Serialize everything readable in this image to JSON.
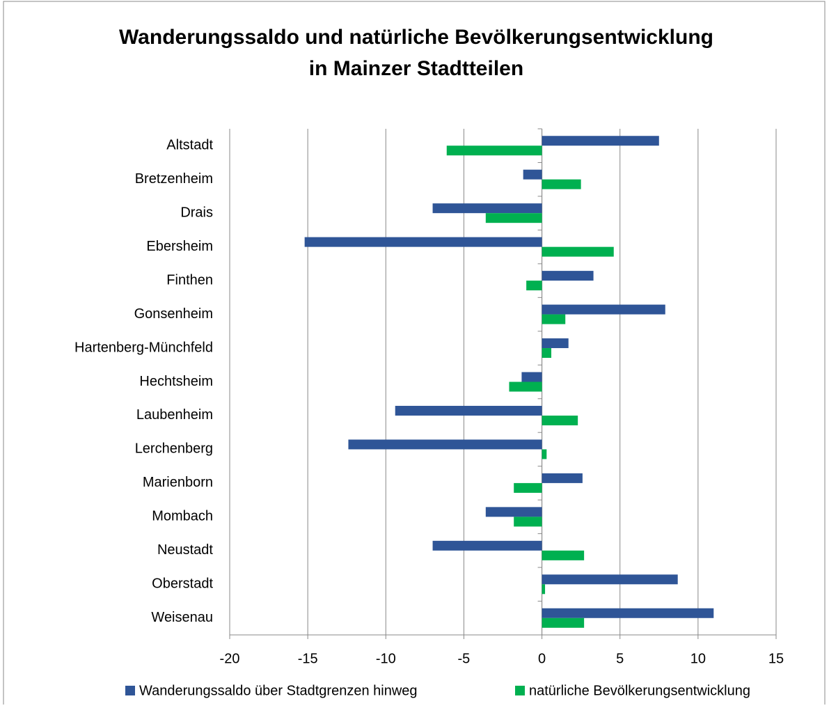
{
  "chart_data": {
    "type": "hbar",
    "title": [
      "Wanderungssaldo und natürliche Bevölkerungsentwicklung",
      "in Mainzer Stadtteilen"
    ],
    "categories": [
      "Altstadt",
      "Bretzenheim",
      "Drais",
      "Ebersheim",
      "Finthen",
      "Gonsenheim",
      "Hartenberg-Münchfeld",
      "Hechtsheim",
      "Laubenheim",
      "Lerchenberg",
      "Marienborn",
      "Mombach",
      "Neustadt",
      "Oberstadt",
      "Weisenau"
    ],
    "series": [
      {
        "name": "Wanderungssaldo über Stadtgrenzen hinweg",
        "color": "#2f5597",
        "values": [
          7.5,
          -1.2,
          -7.0,
          -15.2,
          3.3,
          7.9,
          1.7,
          -1.3,
          -9.4,
          -12.4,
          2.6,
          -3.6,
          -7.0,
          8.7,
          11.0
        ]
      },
      {
        "name": "natürliche Bevölkerungsentwicklung",
        "color": "#00b050",
        "values": [
          -6.1,
          2.5,
          -3.6,
          4.6,
          -1.0,
          1.5,
          0.6,
          -2.1,
          2.3,
          0.3,
          -1.8,
          -1.8,
          2.7,
          0.2,
          2.7
        ]
      }
    ],
    "xlim": [
      -20,
      15
    ],
    "xticks": [
      -20,
      -15,
      -10,
      -5,
      0,
      5,
      10,
      15
    ],
    "grid": true,
    "legend": "bottom"
  }
}
